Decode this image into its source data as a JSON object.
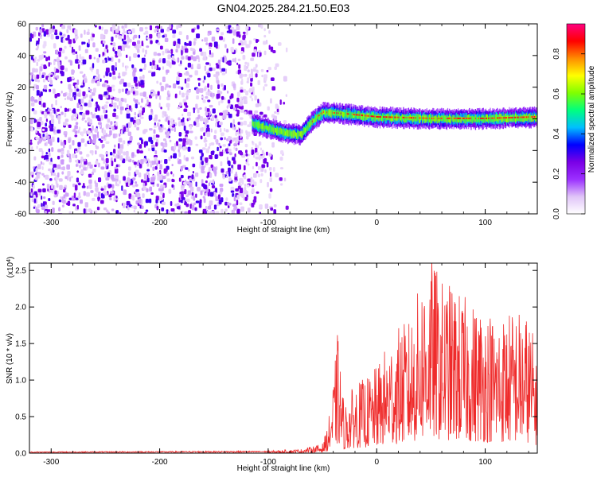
{
  "title": "GN04.2025.284.21.50.E03",
  "chart_data": [
    {
      "type": "heatmap",
      "title": "GN04.2025.284.21.50.E03",
      "xlabel": "Height of straight line (km)",
      "ylabel": "Frequency (Hz)",
      "xlim": [
        -320,
        148
      ],
      "ylim": [
        -60,
        60
      ],
      "xticks": [
        -300,
        -200,
        -100,
        0,
        100
      ],
      "yticks": [
        -60,
        -40,
        -20,
        0,
        20,
        40,
        60
      ],
      "colorbar": {
        "label": "Normalized spectral amplitude",
        "range": [
          0.0,
          0.95
        ],
        "ticks": [
          0.0,
          0.2,
          0.4,
          0.6,
          0.8
        ],
        "colormap": [
          "#ffffff",
          "#e0c4f8",
          "#9b30ff",
          "#7a00e6",
          "#0000ff",
          "#00bfff",
          "#00ff7f",
          "#7fff00",
          "#ffff00",
          "#ff8c00",
          "#ff0000",
          "#ff0080"
        ]
      },
      "features": [
        {
          "name": "scattered noise",
          "x_range": [
            -320,
            -80
          ],
          "y_range": [
            -60,
            60
          ],
          "amplitude": 0.1
        },
        {
          "name": "signal band",
          "points": [
            [
              -115,
              -3
            ],
            [
              -100,
              -6
            ],
            [
              -85,
              -9
            ],
            [
              -70,
              -10
            ],
            [
              -60,
              -2
            ],
            [
              -50,
              4
            ],
            [
              -30,
              3
            ],
            [
              0,
              1
            ],
            [
              50,
              0
            ],
            [
              100,
              0
            ],
            [
              148,
              1
            ]
          ],
          "amplitude_peak": 0.9
        }
      ],
      "grid": false
    },
    {
      "type": "line",
      "ylabel": "SNR (10 * v/v)",
      "xlabel": "Height of straight line (km)",
      "y_multiplier": "(x10^4)",
      "xlim": [
        -320,
        148
      ],
      "ylim": [
        0.0,
        2.6
      ],
      "xticks": [
        -300,
        -200,
        -100,
        0,
        100
      ],
      "yticks": [
        0.0,
        0.5,
        1.0,
        1.5,
        2.0,
        2.5
      ],
      "series": [
        {
          "color": "#ef2b2b",
          "envelope": {
            "x": [
              -320,
              -100,
              -70,
              -50,
              -45,
              -40,
              -36,
              -30,
              -20,
              -10,
              0,
              10,
              20,
              30,
              40,
              48,
              60,
              70,
              80,
              90,
              100,
              110,
              120,
              130,
              140,
              148
            ],
            "y": [
              0.02,
              0.03,
              0.05,
              0.12,
              0.35,
              0.9,
              1.55,
              0.6,
              0.9,
              0.95,
              1.1,
              1.4,
              1.6,
              1.7,
              2.15,
              2.6,
              2.2,
              2.15,
              2.0,
              1.9,
              1.9,
              1.75,
              1.8,
              1.85,
              1.75,
              1.3
            ]
          }
        }
      ],
      "grid": false
    }
  ]
}
